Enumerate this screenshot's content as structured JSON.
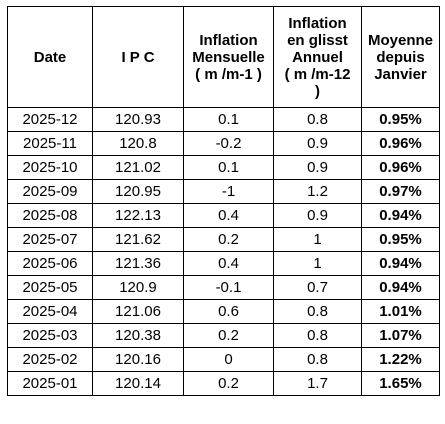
{
  "table": {
    "headers": {
      "date": "Date",
      "ipc": "I P C",
      "inflation_mensuelle": "Inflation\nMensuelle\n( m /m-1 )",
      "inflation_glissement": "Inflation\nen glisst\nAnnuel\n( m /m-12\n)",
      "moyenne": "Moyenne\ndepuis\nJanvier"
    },
    "rows": [
      {
        "date": "2025-12",
        "ipc": "120.93",
        "mensuelle": "0.1",
        "annuel": "0.8",
        "moyenne": "0.95%"
      },
      {
        "date": "2025-11",
        "ipc": "120.8",
        "mensuelle": "-0.2",
        "annuel": "0.9",
        "moyenne": "0.96%"
      },
      {
        "date": "2025-10",
        "ipc": "121.02",
        "mensuelle": "0.1",
        "annuel": "0.9",
        "moyenne": "0.96%"
      },
      {
        "date": "2025-09",
        "ipc": "120.95",
        "mensuelle": "-1",
        "annuel": "1.2",
        "moyenne": "0.97%"
      },
      {
        "date": "2025-08",
        "ipc": "122.13",
        "mensuelle": "0.4",
        "annuel": "0.9",
        "moyenne": "0.94%"
      },
      {
        "date": "2025-07",
        "ipc": "121.62",
        "mensuelle": "0.2",
        "annuel": "1",
        "moyenne": "0.95%"
      },
      {
        "date": "2025-06",
        "ipc": "121.36",
        "mensuelle": "0.4",
        "annuel": "1",
        "moyenne": "0.94%"
      },
      {
        "date": "2025-05",
        "ipc": "120.9",
        "mensuelle": "-0.1",
        "annuel": "0.7",
        "moyenne": "0.94%"
      },
      {
        "date": "2025-04",
        "ipc": "121.06",
        "mensuelle": "0.6",
        "annuel": "0.8",
        "moyenne": "1.01%"
      },
      {
        "date": "2025-03",
        "ipc": "120.38",
        "mensuelle": "0.2",
        "annuel": "0.8",
        "moyenne": "1.07%"
      },
      {
        "date": "2025-02",
        "ipc": "120.16",
        "mensuelle": "0",
        "annuel": "0.8",
        "moyenne": "1.22%"
      },
      {
        "date": "2025-01",
        "ipc": "120.14",
        "mensuelle": "0.2",
        "annuel": "1.7",
        "moyenne": "1.65%"
      }
    ]
  }
}
